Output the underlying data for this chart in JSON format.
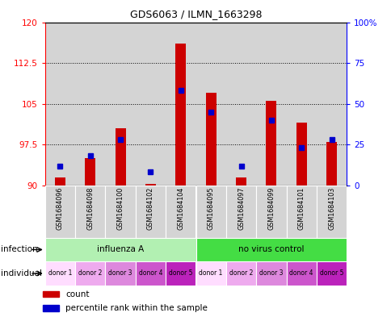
{
  "title": "GDS6063 / ILMN_1663298",
  "samples": [
    "GSM1684096",
    "GSM1684098",
    "GSM1684100",
    "GSM1684102",
    "GSM1684104",
    "GSM1684095",
    "GSM1684097",
    "GSM1684099",
    "GSM1684101",
    "GSM1684103"
  ],
  "red_values": [
    91.5,
    95.0,
    100.5,
    90.3,
    116.0,
    107.0,
    91.5,
    105.5,
    101.5,
    98.0
  ],
  "blue_values": [
    93.5,
    95.5,
    98.5,
    92.5,
    107.5,
    103.5,
    93.5,
    102.0,
    97.0,
    98.5
  ],
  "ylim_left": [
    90,
    120
  ],
  "ylim_right": [
    0,
    100
  ],
  "yticks_left": [
    90,
    97.5,
    105,
    112.5,
    120
  ],
  "yticks_right": [
    0,
    25,
    50,
    75,
    100
  ],
  "infection_groups": [
    {
      "label": "influenza A",
      "start": 0,
      "end": 5,
      "color": "#b2f0b2"
    },
    {
      "label": "no virus control",
      "start": 5,
      "end": 10,
      "color": "#44dd44"
    }
  ],
  "individual_labels": [
    "donor 1",
    "donor 2",
    "donor 3",
    "donor 4",
    "donor 5",
    "donor 1",
    "donor 2",
    "donor 3",
    "donor 4",
    "donor 5"
  ],
  "individual_colors": [
    "#ffddff",
    "#eeaaee",
    "#dd88dd",
    "#cc55cc",
    "#bb22bb",
    "#ffddff",
    "#eeaaee",
    "#dd88dd",
    "#cc55cc",
    "#bb22bb"
  ],
  "bar_color": "#cc0000",
  "dot_color": "#0000cc",
  "col_bg_color": "#d4d4d4",
  "legend_items": [
    {
      "label": "count",
      "color": "#cc0000"
    },
    {
      "label": "percentile rank within the sample",
      "color": "#0000cc"
    }
  ]
}
